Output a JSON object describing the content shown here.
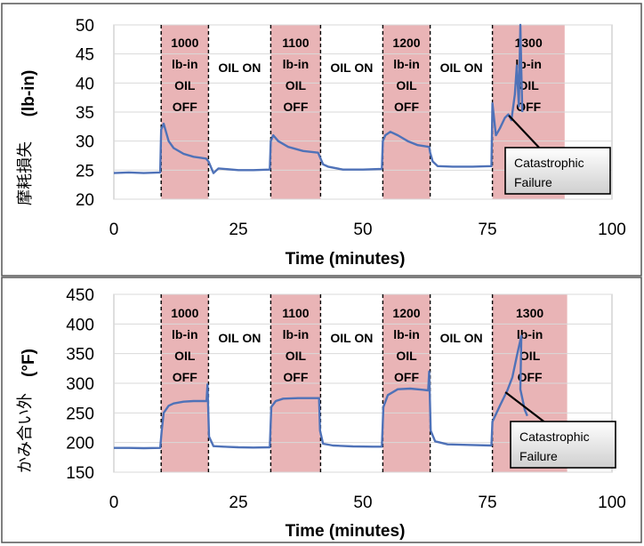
{
  "chart_data": [
    {
      "type": "line",
      "ylabel_jp": "摩耗損失",
      "ylabel_unit": "(lb-in)",
      "xlabel": "Time (minutes)",
      "xlim": [
        0,
        100
      ],
      "ylim": [
        20,
        50
      ],
      "xticks": [
        "0",
        "25",
        "50",
        "75",
        "100"
      ],
      "yticks": [
        "20",
        "25",
        "30",
        "35",
        "40",
        "45",
        "50"
      ],
      "color": "#4f72b8",
      "shade_color": "#e9b4b6",
      "phases": [
        {
          "start": 9.5,
          "end": 19,
          "shaded": true,
          "lines": [
            "1000",
            "lb-in",
            "OIL",
            "OFF"
          ]
        },
        {
          "start": 19,
          "end": 31.5,
          "shaded": false,
          "lines": [
            "OIL ON"
          ]
        },
        {
          "start": 31.5,
          "end": 41.5,
          "shaded": true,
          "lines": [
            "1100",
            "lb-in",
            "OIL",
            "OFF"
          ]
        },
        {
          "start": 41.5,
          "end": 54,
          "shaded": false,
          "lines": [
            "OIL ON"
          ]
        },
        {
          "start": 54,
          "end": 63.5,
          "shaded": true,
          "lines": [
            "1200",
            "lb-in",
            "OIL",
            "OFF"
          ]
        },
        {
          "start": 63.5,
          "end": 76,
          "shaded": false,
          "lines": [
            "OIL ON"
          ]
        },
        {
          "start": 76,
          "end": 90.5,
          "shaded": true,
          "lines": [
            "1300",
            "lb-in",
            "OIL",
            "OFF"
          ]
        }
      ],
      "boundaries": [
        9.5,
        19,
        31.5,
        41.5,
        54,
        63.5,
        76
      ],
      "series": [
        {
          "points": [
            [
              0,
              24.5
            ],
            [
              3,
              24.6
            ],
            [
              6,
              24.5
            ],
            [
              9.3,
              24.6
            ],
            [
              9.5,
              32
            ],
            [
              10,
              33
            ],
            [
              11,
              30
            ],
            [
              12,
              28.8
            ],
            [
              14,
              27.8
            ],
            [
              16,
              27.3
            ],
            [
              18.5,
              27
            ],
            [
              19,
              26.5
            ],
            [
              20,
              24.5
            ],
            [
              21,
              25.3
            ],
            [
              25,
              25
            ],
            [
              28,
              25
            ],
            [
              31.3,
              25.1
            ],
            [
              31.5,
              30
            ],
            [
              32,
              31
            ],
            [
              33,
              30
            ],
            [
              35,
              29
            ],
            [
              38,
              28.3
            ],
            [
              41,
              28
            ],
            [
              41.5,
              27
            ],
            [
              42,
              26
            ],
            [
              43,
              25.6
            ],
            [
              46,
              25.1
            ],
            [
              50,
              25.1
            ],
            [
              53.8,
              25.2
            ],
            [
              54,
              30
            ],
            [
              54.5,
              31
            ],
            [
              55.5,
              31.6
            ],
            [
              57,
              31
            ],
            [
              59,
              30
            ],
            [
              61,
              29.3
            ],
            [
              63.3,
              29
            ],
            [
              63.5,
              28
            ],
            [
              64,
              26.5
            ],
            [
              65,
              25.7
            ],
            [
              68,
              25.6
            ],
            [
              72,
              25.6
            ],
            [
              75.8,
              25.7
            ],
            [
              76,
              36.5
            ],
            [
              76.7,
              31
            ],
            [
              77.5,
              32.2
            ],
            [
              78.5,
              34
            ],
            [
              79.2,
              34.6
            ],
            [
              79.8,
              33.6
            ],
            [
              80.5,
              38
            ],
            [
              80.9,
              43
            ],
            [
              81.3,
              36
            ],
            [
              81.6,
              50
            ],
            [
              81.8,
              42
            ],
            [
              82,
              35
            ]
          ]
        }
      ],
      "annotation": {
        "lines": [
          "Catastrophic",
          "Failure"
        ],
        "target": [
          79.3,
          34.4
        ]
      }
    },
    {
      "type": "line",
      "ylabel_jp": "かみ合い外",
      "ylabel_unit": "(°F)",
      "xlabel": "Time (minutes)",
      "xlim": [
        0,
        100
      ],
      "ylim": [
        150,
        450
      ],
      "xticks": [
        "0",
        "25",
        "50",
        "75",
        "100"
      ],
      "yticks": [
        "150",
        "200",
        "250",
        "300",
        "350",
        "400",
        "450"
      ],
      "color": "#4f72b8",
      "shade_color": "#e9b4b6",
      "phases": [
        {
          "start": 9.5,
          "end": 19,
          "shaded": true,
          "lines": [
            "1000",
            "lb-in",
            "OIL",
            "OFF"
          ]
        },
        {
          "start": 19,
          "end": 31.5,
          "shaded": false,
          "lines": [
            "OIL ON"
          ]
        },
        {
          "start": 31.5,
          "end": 41.5,
          "shaded": true,
          "lines": [
            "1100",
            "lb-in",
            "OIL",
            "OFF"
          ]
        },
        {
          "start": 41.5,
          "end": 54,
          "shaded": false,
          "lines": [
            "OIL ON"
          ]
        },
        {
          "start": 54,
          "end": 63.5,
          "shaded": true,
          "lines": [
            "1200",
            "lb-in",
            "OIL",
            "OFF"
          ]
        },
        {
          "start": 63.5,
          "end": 76,
          "shaded": false,
          "lines": [
            "OIL ON"
          ]
        },
        {
          "start": 76,
          "end": 91,
          "shaded": true,
          "lines": [
            "1300",
            "lb-in",
            "OIL",
            "OFF"
          ]
        }
      ],
      "boundaries": [
        9.5,
        19,
        31.5,
        41.5,
        54,
        63.5,
        76
      ],
      "series": [
        {
          "points": [
            [
              0,
              191
            ],
            [
              3,
              191
            ],
            [
              6,
              190.5
            ],
            [
              9.3,
              191
            ],
            [
              9.6,
              220
            ],
            [
              10,
              250
            ],
            [
              11,
              262
            ],
            [
              12,
              266
            ],
            [
              14,
              269
            ],
            [
              16,
              270
            ],
            [
              18.6,
              270
            ],
            [
              18.8,
              298
            ],
            [
              19.1,
              210
            ],
            [
              20,
              194
            ],
            [
              22,
              193
            ],
            [
              25,
              192
            ],
            [
              28,
              191.5
            ],
            [
              31.3,
              192
            ],
            [
              31.6,
              260
            ],
            [
              32.5,
              270
            ],
            [
              34,
              274
            ],
            [
              37,
              275
            ],
            [
              41.2,
              275
            ],
            [
              41.4,
              220
            ],
            [
              42,
              198
            ],
            [
              44,
              195
            ],
            [
              48,
              193.5
            ],
            [
              52,
              193
            ],
            [
              53.8,
              193
            ],
            [
              54.1,
              260
            ],
            [
              55,
              280
            ],
            [
              57,
              290
            ],
            [
              59.5,
              291
            ],
            [
              62,
              289
            ],
            [
              63.1,
              288
            ],
            [
              63.3,
              320
            ],
            [
              63.6,
              220
            ],
            [
              64.5,
              202
            ],
            [
              67,
              197
            ],
            [
              71,
              196
            ],
            [
              75.8,
              195
            ],
            [
              76,
              235
            ],
            [
              77.5,
              262
            ],
            [
              79,
              288
            ],
            [
              80,
              310
            ],
            [
              81,
              350
            ],
            [
              81.8,
              380
            ],
            [
              81.6,
              290
            ],
            [
              82.5,
              255
            ],
            [
              83,
              245
            ]
          ]
        }
      ],
      "annotation": {
        "lines": [
          "Catastrophic",
          "Failure"
        ],
        "target": [
          78.6,
          285
        ]
      }
    }
  ]
}
